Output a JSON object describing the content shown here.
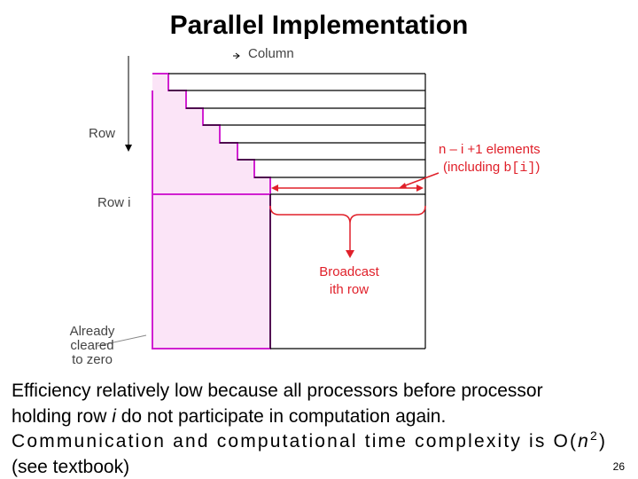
{
  "header": {
    "title": "Parallel Implementation"
  },
  "diagram": {
    "column_label": "Column",
    "row_label": "Row",
    "row_i_label": "Row i",
    "elements_label": [
      "n – i +1 elements",
      "(including ",
      "b[i]",
      ")"
    ],
    "broadcast_label": [
      "Broadcast",
      "ith row"
    ],
    "cleared_label": [
      "Already",
      "cleared",
      "to zero"
    ]
  },
  "body": {
    "lines": [
      [
        "Efficiency relatively low because all processors before processor"
      ],
      [
        "holding row ",
        "i",
        " do not participate in computation again."
      ],
      [
        "Communication and computational time complexity is O(",
        "n",
        "2",
        ")"
      ],
      [
        "(see textbook)"
      ]
    ]
  },
  "footer": {
    "page_number": "26"
  }
}
